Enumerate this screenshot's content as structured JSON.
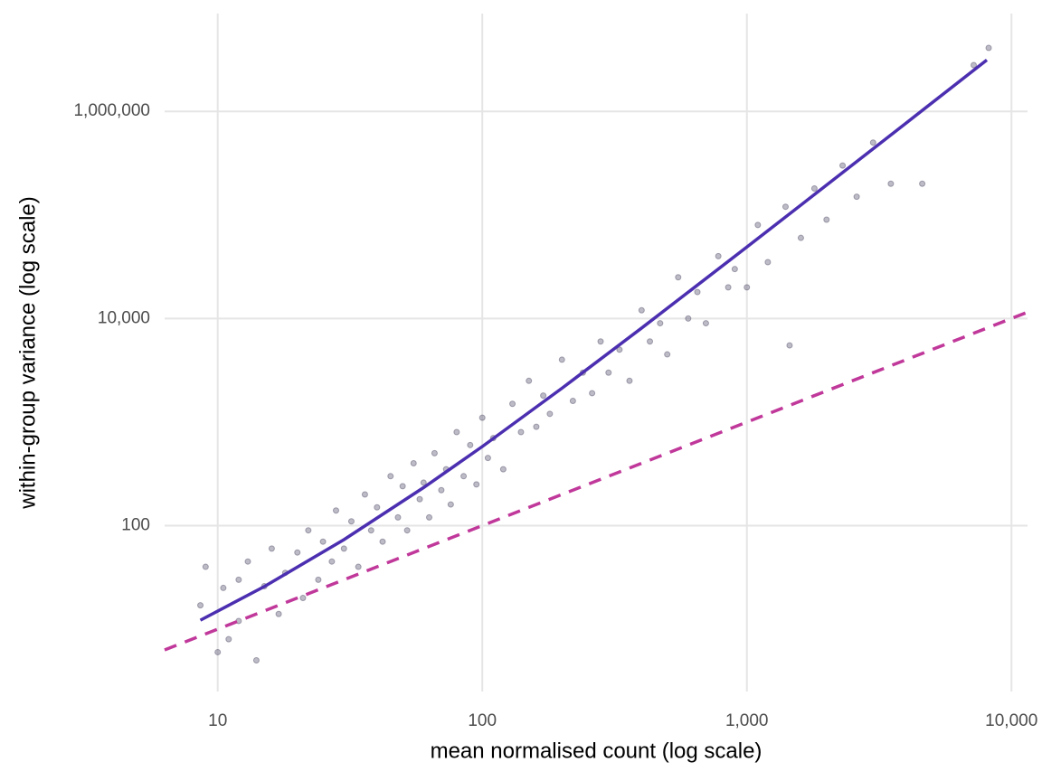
{
  "chart_data": {
    "type": "scatter",
    "x_label": "mean normalised count (log scale)",
    "y_label": "within-group variance (log scale)",
    "xscale": "log",
    "yscale": "log",
    "grid": true,
    "xlim": [
      6.3,
      11500
    ],
    "ylim": [
      2.5,
      8800000
    ],
    "xticks": [
      10,
      100,
      {
        "value": 1000,
        "label": "1,000"
      },
      {
        "value": 10000,
        "label": "10,000"
      }
    ],
    "yticks": [
      100,
      {
        "value": 10000,
        "label": "10,000"
      },
      {
        "value": 1000000,
        "label": "1,000,000"
      }
    ],
    "point_color": "#5b5670",
    "x": [
      8.6,
      9,
      10,
      10.5,
      11,
      12,
      12,
      13,
      14,
      15,
      16,
      17,
      18,
      20,
      21,
      22,
      24,
      25,
      27,
      28,
      30,
      32,
      34,
      36,
      38,
      40,
      42,
      45,
      48,
      50,
      52,
      55,
      58,
      60,
      63,
      66,
      70,
      73,
      76,
      80,
      85,
      90,
      95,
      100,
      105,
      110,
      120,
      130,
      140,
      150,
      160,
      170,
      180,
      200,
      220,
      240,
      260,
      280,
      300,
      330,
      360,
      400,
      430,
      470,
      500,
      550,
      600,
      650,
      700,
      780,
      850,
      900,
      1000,
      1100,
      1200,
      1400,
      1450,
      1600,
      1800,
      2000,
      2300,
      2600,
      3000,
      3500,
      4600,
      7200,
      8200
    ],
    "y": [
      17,
      40,
      6,
      25,
      8,
      30,
      12,
      45,
      5,
      26,
      60,
      14,
      35,
      55,
      20,
      90,
      30,
      70,
      45,
      140,
      60,
      110,
      40,
      200,
      90,
      150,
      70,
      300,
      120,
      240,
      90,
      400,
      180,
      260,
      120,
      500,
      220,
      350,
      160,
      800,
      300,
      600,
      250,
      1100,
      450,
      700,
      350,
      1500,
      800,
      2500,
      900,
      1800,
      1200,
      4000,
      1600,
      3000,
      1900,
      6000,
      3000,
      5000,
      2500,
      12000,
      6000,
      9000,
      4500,
      25000,
      10000,
      18000,
      9000,
      40000,
      20000,
      30000,
      20000,
      80000,
      35000,
      120000,
      5500,
      60000,
      180000,
      90000,
      300000,
      150000,
      500000,
      200000,
      200000,
      2800000,
      4100000
    ],
    "fit": {
      "color": "#4b2fb0",
      "x": [
        8.6,
        15,
        30,
        60,
        100,
        200,
        400,
        1000,
        2000,
        4000,
        8070
      ],
      "y": [
        12.2,
        25.8,
        73.2,
        233,
        580,
        2120,
        8080,
        49000,
        194000,
        772000,
        3134000
      ]
    },
    "reference": {
      "color": "#c0389a",
      "dash": true,
      "x": [
        6.3,
        11500
      ],
      "y": [
        6.3,
        11500
      ]
    }
  }
}
